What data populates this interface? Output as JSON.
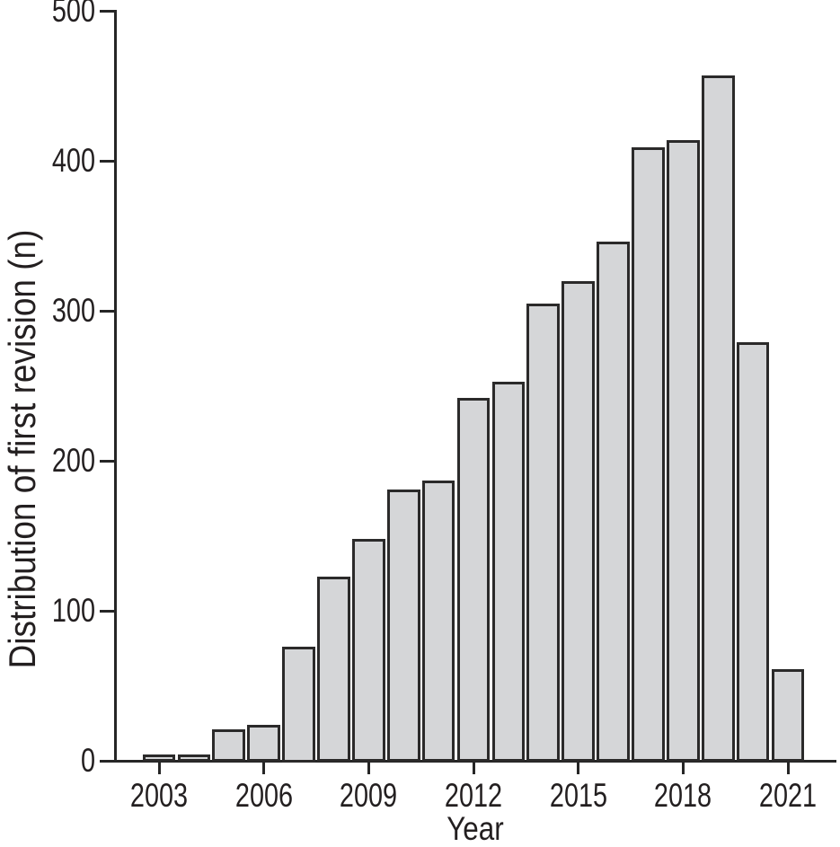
{
  "chart_data": {
    "type": "bar",
    "title": "",
    "xlabel": "Year",
    "ylabel": "Distribution of first revision (n)",
    "categories": [
      "2003",
      "2004",
      "2005",
      "2006",
      "2007",
      "2008",
      "2009",
      "2010",
      "2011",
      "2012",
      "2013",
      "2014",
      "2015",
      "2016",
      "2017",
      "2018",
      "2019",
      "2020",
      "2021"
    ],
    "values": [
      3,
      3,
      20,
      23,
      75,
      122,
      147,
      180,
      186,
      241,
      252,
      304,
      319,
      345,
      408,
      413,
      456,
      278,
      60
    ],
    "ylim": [
      0,
      500
    ],
    "yticks": [
      0,
      100,
      200,
      300,
      400,
      500
    ],
    "xtick_labels": [
      "2003",
      "2006",
      "2009",
      "2012",
      "2015",
      "2018",
      "2021"
    ],
    "grid": false,
    "legend": "none",
    "colors": {
      "bar_fill": "#d5d6d8",
      "bar_border": "#2b2a2a",
      "axis": "#262626",
      "text": "#231f20",
      "background": "#ffffff"
    }
  }
}
